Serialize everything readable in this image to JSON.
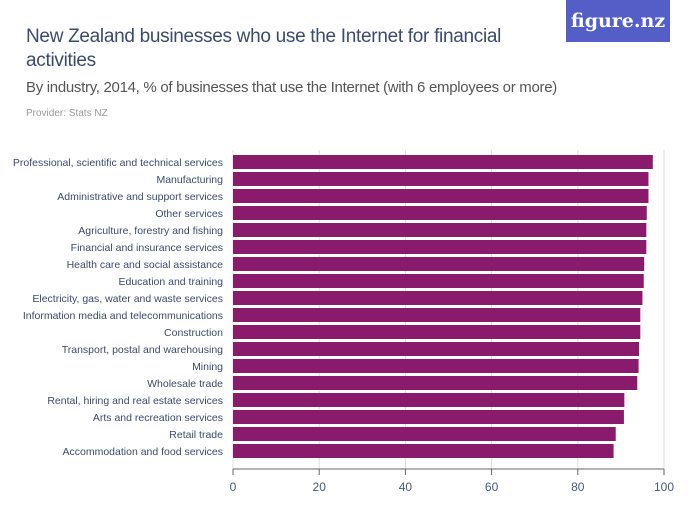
{
  "header": {
    "title": "New Zealand businesses who use the Internet for financial activities",
    "subtitle": "By industry, 2014, % of businesses that use the Internet (with 6 employees or more)",
    "provider": "Provider: Stats NZ",
    "logo": "figure.nz"
  },
  "colors": {
    "bar": "#8a1a6b",
    "title": "#3c4a6b",
    "logo_bg": "#545ec7"
  },
  "chart_data": {
    "type": "bar",
    "orientation": "horizontal",
    "categories": [
      "Professional, scientific and technical services",
      "Manufacturing",
      "Administrative and support services",
      "Other services",
      "Agriculture, forestry and fishing",
      "Financial and insurance services",
      "Health care and social assistance",
      "Education and training",
      "Electricity, gas, water and waste services",
      "Information media and telecommunications",
      "Construction",
      "Transport, postal and warehousing",
      "Mining",
      "Wholesale trade",
      "Rental, hiring and real estate services",
      "Arts and recreation services",
      "Retail trade",
      "Accommodation and food services"
    ],
    "values": [
      97.4,
      96.4,
      96.4,
      96.0,
      95.9,
      95.9,
      95.4,
      95.3,
      95.0,
      94.5,
      94.5,
      94.2,
      94.1,
      93.8,
      90.8,
      90.7,
      88.8,
      88.3
    ],
    "xlim": [
      0,
      100
    ],
    "xticks": [
      "0",
      "20",
      "40",
      "60",
      "80",
      "100"
    ],
    "grid": true
  }
}
